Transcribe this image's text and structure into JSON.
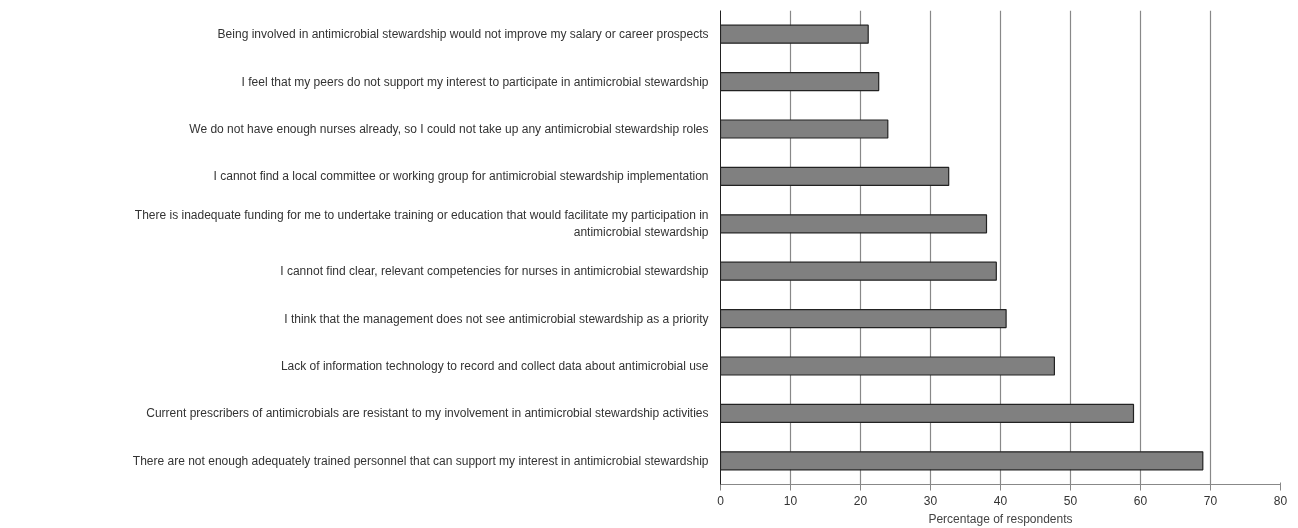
{
  "chart_data": {
    "type": "bar",
    "orientation": "horizontal",
    "xlabel": "Percentage of respondents",
    "categories": [
      "Being involved in antimicrobial stewardship would not improve my salary or career prospects",
      "I feel that my peers do not support my interest to participate in antimicrobial stewardship",
      "We do not have enough nurses already, so I could not take up any antimicrobial stewardship roles",
      "I cannot find a local committee or working group for antimicrobial stewardship implementation",
      "There is inadequate funding for me to undertake training or education that would facilitate my participation in antimicrobial stewardship",
      "I cannot find clear, relevant competencies for nurses in antimicrobial stewardship",
      "I think that the management does not see antimicrobial stewardship as a priority",
      "Lack of information technology to record and collect data about antimicrobial use",
      "Current prescribers of antimicrobials are resistant to my involvement in antimicrobial stewardship activities",
      "There are not enough adequately trained personnel that can support my interest in antimicrobial stewardship"
    ],
    "values": [
      21.1,
      22.6,
      23.9,
      32.6,
      38.0,
      39.4,
      40.8,
      47.7,
      59.0,
      68.9
    ],
    "color": "#808080",
    "xlim": [
      0,
      80
    ],
    "xticks": [
      0,
      10,
      20,
      30,
      40,
      50,
      60,
      70,
      80
    ],
    "grid": "x"
  }
}
